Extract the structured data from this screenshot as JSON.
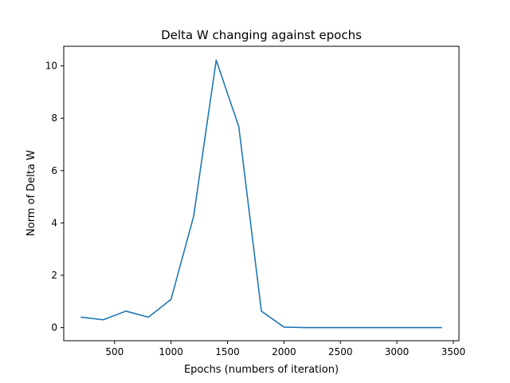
{
  "chart_data": {
    "type": "line",
    "title": "Delta W changing against epochs",
    "xlabel": "Epochs (numbers of iteration)",
    "ylabel": "Norm of Delta W",
    "xlim": [
      50,
      3550
    ],
    "ylim": [
      -0.5,
      10.75
    ],
    "xticks": [
      500,
      1000,
      1500,
      2000,
      2500,
      3000,
      3500
    ],
    "yticks": [
      0,
      2,
      4,
      6,
      8,
      10
    ],
    "grid": false,
    "legend": "none",
    "series": [
      {
        "color": "#1f77b4",
        "x": [
          200,
          400,
          600,
          800,
          1000,
          1200,
          1400,
          1600,
          1800,
          2000,
          2200,
          2400,
          2600,
          2800,
          3000,
          3200,
          3400
        ],
        "y": [
          0.4,
          0.3,
          0.63,
          0.4,
          1.08,
          4.25,
          10.22,
          7.68,
          0.63,
          0.02,
          0.0,
          0.0,
          0.0,
          0.0,
          0.0,
          0.0,
          0.0
        ]
      }
    ]
  }
}
